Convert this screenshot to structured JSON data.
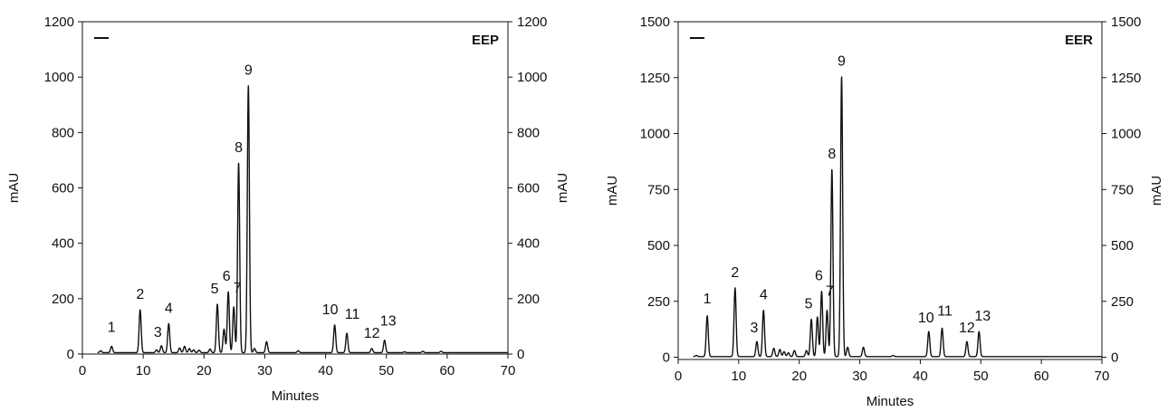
{
  "chart_data": [
    {
      "type": "line",
      "panel_tag": "EEP",
      "xlabel": "Minutes",
      "ylabel_left": "mAU",
      "ylabel_right": "mAU",
      "xlim": [
        0,
        70
      ],
      "ylim": [
        0,
        1200
      ],
      "xticks": [
        0,
        10,
        20,
        30,
        40,
        50,
        60,
        70
      ],
      "yticks": [
        0,
        200,
        400,
        600,
        800,
        1000,
        1200
      ],
      "legend_marker": "top-left",
      "grid": false,
      "baseline": 5,
      "peaks": [
        {
          "label": "1",
          "x": 4.8,
          "y": 28
        },
        {
          "label": "2",
          "x": 9.5,
          "y": 160
        },
        {
          "label": "3",
          "x": 13.0,
          "y": 30
        },
        {
          "label": "4",
          "x": 14.2,
          "y": 110
        },
        {
          "label": "5",
          "x": 22.2,
          "y": 180
        },
        {
          "label": "6",
          "x": 24.0,
          "y": 225
        },
        {
          "label": "7",
          "x": 24.9,
          "y": 170
        },
        {
          "label": "8",
          "x": 25.7,
          "y": 690
        },
        {
          "label": "9",
          "x": 27.3,
          "y": 970
        },
        {
          "label": "10",
          "x": 41.5,
          "y": 105
        },
        {
          "label": "11",
          "x": 43.5,
          "y": 75
        },
        {
          "label": "12",
          "x": 47.6,
          "y": 20
        },
        {
          "label": "13",
          "x": 49.7,
          "y": 50
        }
      ],
      "minor_peaks": [
        {
          "x": 3.0,
          "y": 12
        },
        {
          "x": 12.2,
          "y": 15
        },
        {
          "x": 16.0,
          "y": 22
        },
        {
          "x": 16.8,
          "y": 28
        },
        {
          "x": 17.6,
          "y": 20
        },
        {
          "x": 18.3,
          "y": 15
        },
        {
          "x": 19.2,
          "y": 14
        },
        {
          "x": 21.0,
          "y": 18
        },
        {
          "x": 23.3,
          "y": 90
        },
        {
          "x": 28.3,
          "y": 20
        },
        {
          "x": 30.3,
          "y": 45
        },
        {
          "x": 35.5,
          "y": 12
        },
        {
          "x": 53.0,
          "y": 8
        },
        {
          "x": 56.0,
          "y": 10
        },
        {
          "x": 59.0,
          "y": 10
        }
      ]
    },
    {
      "type": "line",
      "panel_tag": "EER",
      "xlabel": "Minutes",
      "ylabel_left": "mAU",
      "ylabel_right": "mAU",
      "xlim": [
        0,
        70
      ],
      "ylim": [
        -10,
        1500
      ],
      "xticks": [
        0,
        10,
        20,
        30,
        40,
        50,
        60,
        70
      ],
      "yticks": [
        0,
        250,
        500,
        750,
        1000,
        1250,
        1500
      ],
      "legend_marker": "top-left",
      "grid": false,
      "baseline": 3,
      "peaks": [
        {
          "label": "1",
          "x": 4.8,
          "y": 185
        },
        {
          "label": "2",
          "x": 9.4,
          "y": 310
        },
        {
          "label": "3",
          "x": 13.0,
          "y": 70
        },
        {
          "label": "4",
          "x": 14.1,
          "y": 210
        },
        {
          "label": "5",
          "x": 22.0,
          "y": 170
        },
        {
          "label": "6",
          "x": 23.7,
          "y": 295
        },
        {
          "label": "7",
          "x": 24.6,
          "y": 210
        },
        {
          "label": "8",
          "x": 25.4,
          "y": 840
        },
        {
          "label": "9",
          "x": 27.0,
          "y": 1255
        },
        {
          "label": "10",
          "x": 41.4,
          "y": 115
        },
        {
          "label": "11",
          "x": 43.6,
          "y": 130
        },
        {
          "label": "12",
          "x": 47.7,
          "y": 70
        },
        {
          "label": "13",
          "x": 49.7,
          "y": 115
        }
      ],
      "minor_peaks": [
        {
          "x": 3.0,
          "y": 8
        },
        {
          "x": 15.8,
          "y": 40
        },
        {
          "x": 16.8,
          "y": 35
        },
        {
          "x": 17.5,
          "y": 25
        },
        {
          "x": 18.2,
          "y": 20
        },
        {
          "x": 19.2,
          "y": 30
        },
        {
          "x": 21.2,
          "y": 30
        },
        {
          "x": 23.0,
          "y": 180
        },
        {
          "x": 28.0,
          "y": 45
        },
        {
          "x": 30.6,
          "y": 45
        },
        {
          "x": 35.5,
          "y": 8
        }
      ]
    }
  ]
}
